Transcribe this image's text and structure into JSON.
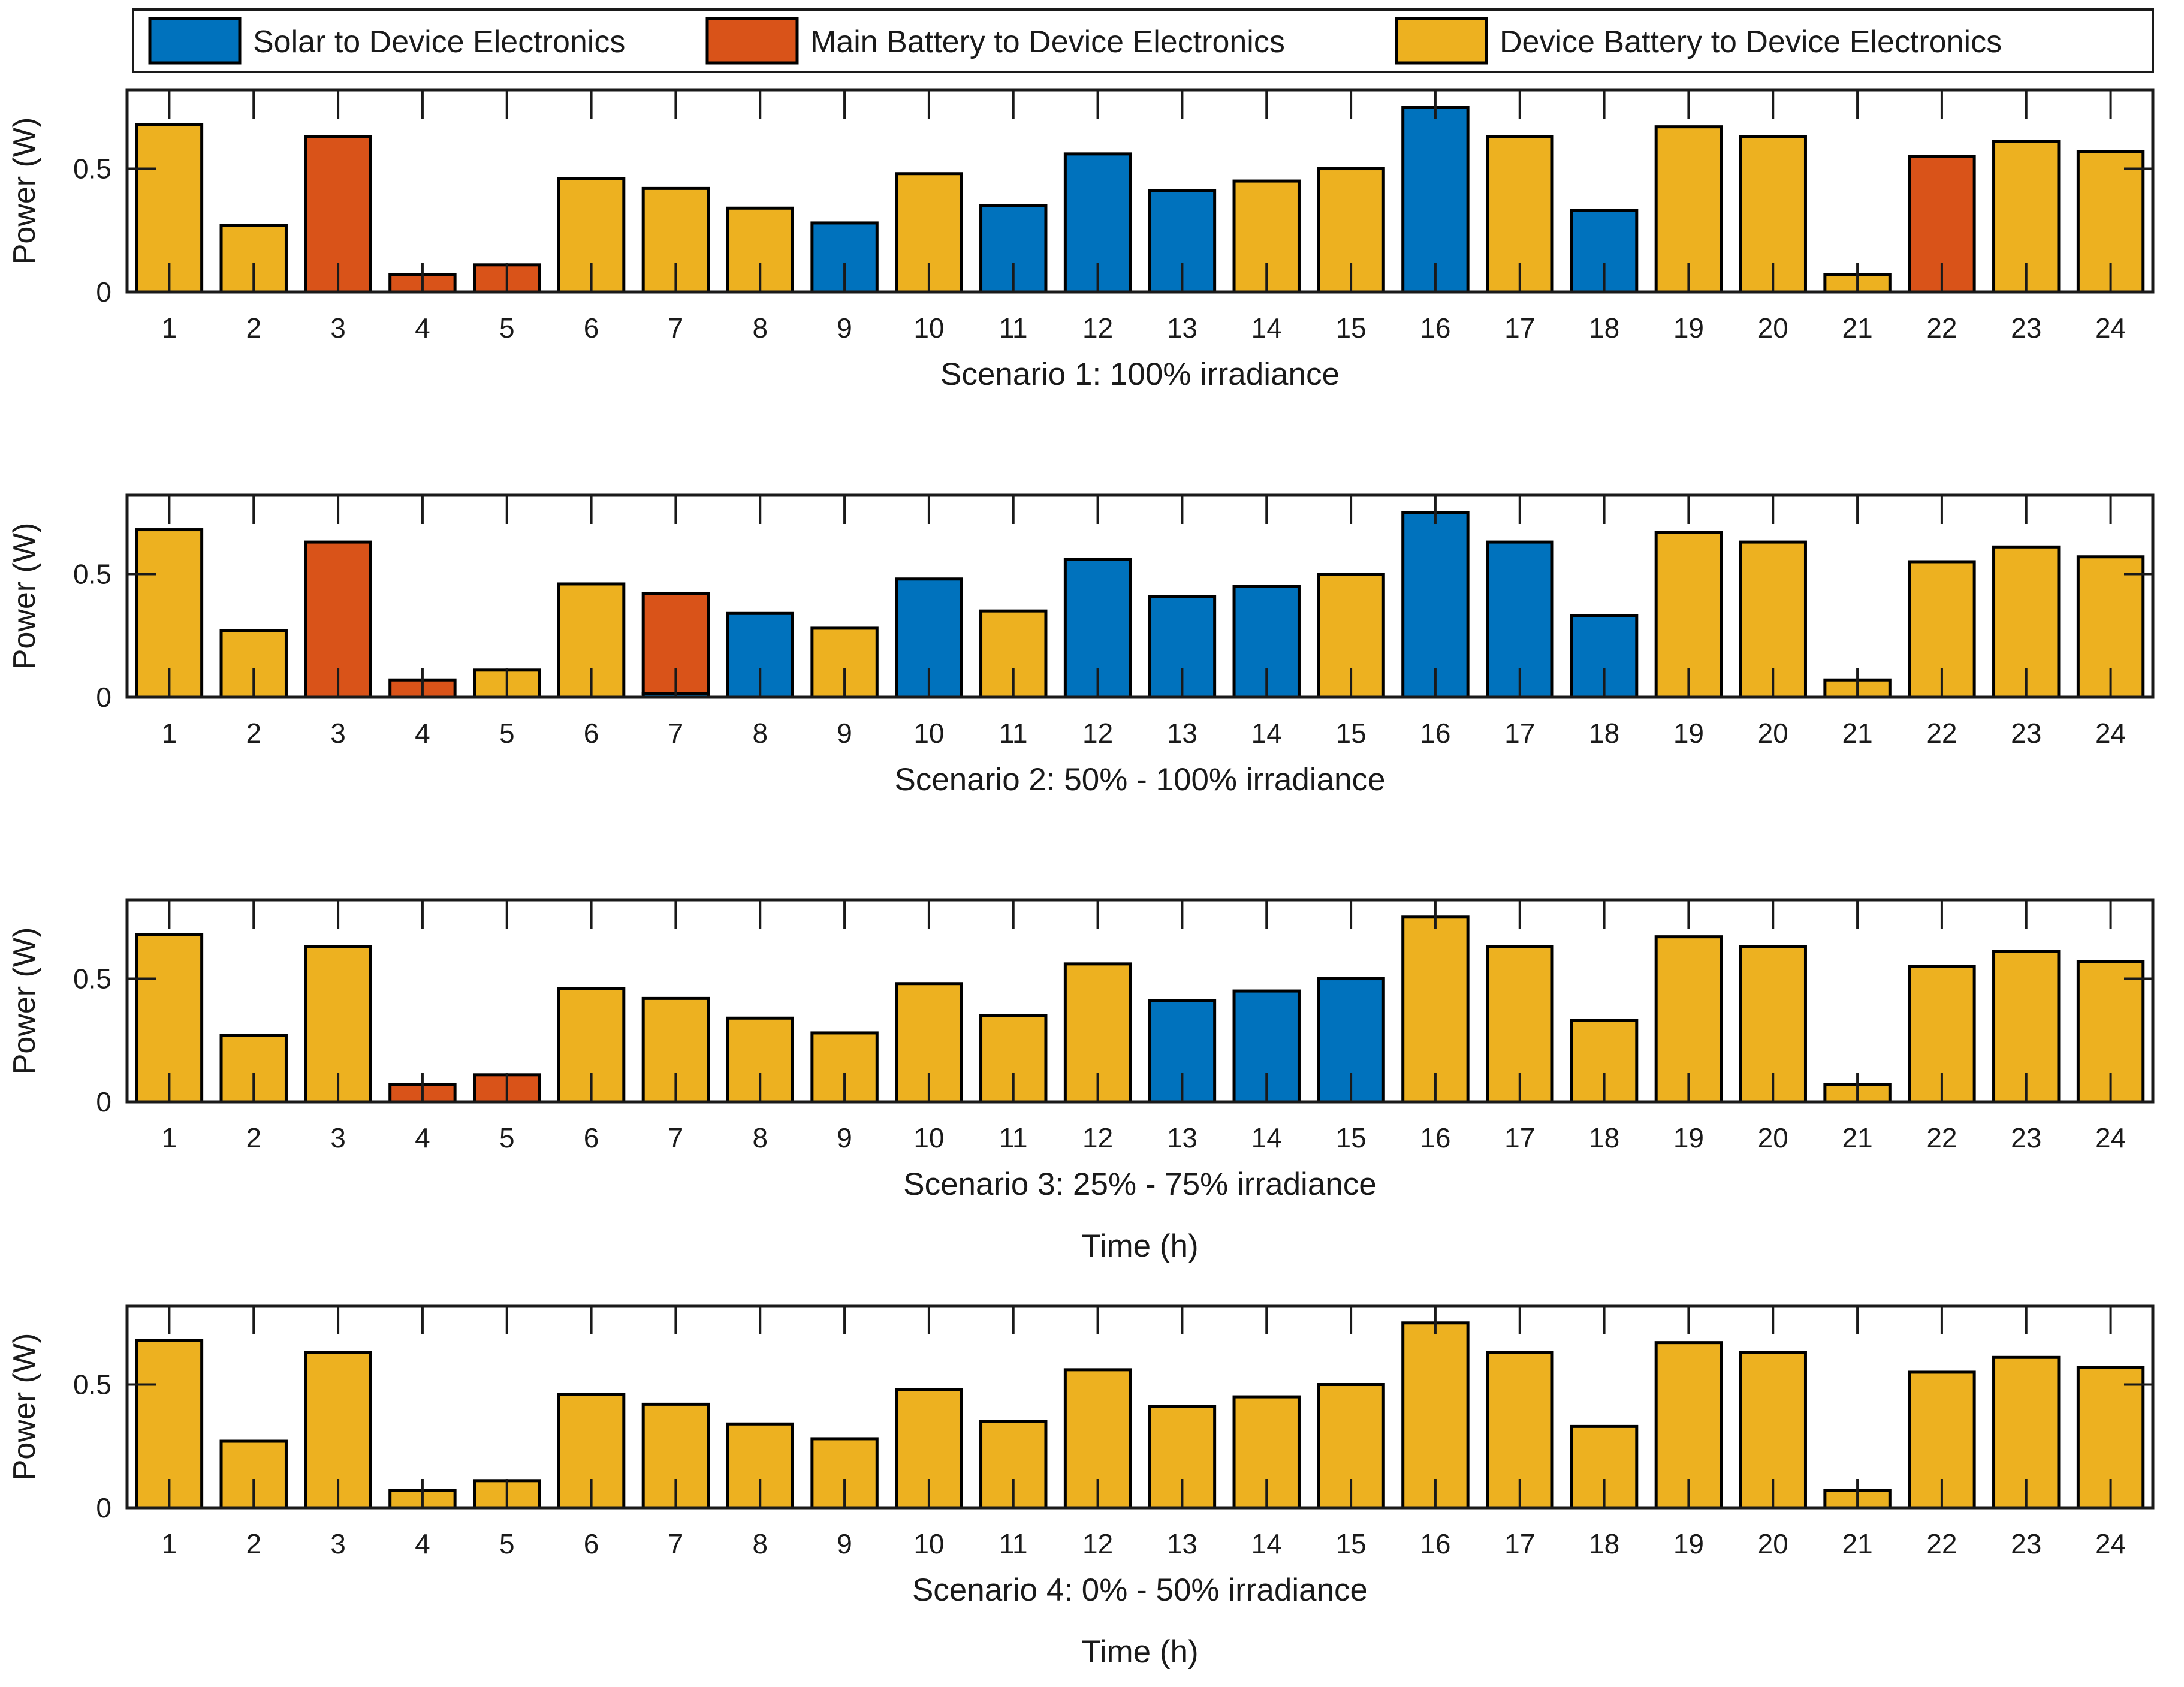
{
  "figure": {
    "background": "#ffffff",
    "axes_color": "#1a1a1a"
  },
  "chart_data": {
    "type": "bar",
    "categories": [
      1,
      2,
      3,
      4,
      5,
      6,
      7,
      8,
      9,
      10,
      11,
      12,
      13,
      14,
      15,
      16,
      17,
      18,
      19,
      20,
      21,
      22,
      23,
      24
    ],
    "xlabel": "Time (h)",
    "ylabel": "Power (W)",
    "ylim": [
      0,
      0.82
    ],
    "yticks": [
      0,
      0.5
    ],
    "ytick_labels": [
      "0",
      "0.5"
    ],
    "grid": false,
    "legend_position": "top",
    "legend": [
      {
        "key": "solar",
        "label": "Solar to Device Electronics",
        "color": "#0072BD"
      },
      {
        "key": "main",
        "label": "Main Battery to Device Electronics",
        "color": "#D95319"
      },
      {
        "key": "device",
        "label": "Device Battery to Device Electronics",
        "color": "#EDB120"
      }
    ],
    "subplots": [
      {
        "title": "Scenario 1: 100% irradiance",
        "show_xlabel": false,
        "bars": [
          [
            {
              "source": "device",
              "value": 0.68
            }
          ],
          [
            {
              "source": "device",
              "value": 0.27
            }
          ],
          [
            {
              "source": "main",
              "value": 0.63
            }
          ],
          [
            {
              "source": "main",
              "value": 0.07
            }
          ],
          [
            {
              "source": "main",
              "value": 0.11
            }
          ],
          [
            {
              "source": "device",
              "value": 0.46
            }
          ],
          [
            {
              "source": "device",
              "value": 0.42
            }
          ],
          [
            {
              "source": "device",
              "value": 0.34
            }
          ],
          [
            {
              "source": "solar",
              "value": 0.28
            }
          ],
          [
            {
              "source": "device",
              "value": 0.48
            }
          ],
          [
            {
              "source": "solar",
              "value": 0.35
            }
          ],
          [
            {
              "source": "solar",
              "value": 0.56
            }
          ],
          [
            {
              "source": "solar",
              "value": 0.41
            }
          ],
          [
            {
              "source": "device",
              "value": 0.45
            }
          ],
          [
            {
              "source": "device",
              "value": 0.5
            }
          ],
          [
            {
              "source": "solar",
              "value": 0.75
            }
          ],
          [
            {
              "source": "device",
              "value": 0.63
            }
          ],
          [
            {
              "source": "solar",
              "value": 0.33
            }
          ],
          [
            {
              "source": "device",
              "value": 0.67
            }
          ],
          [
            {
              "source": "device",
              "value": 0.63
            }
          ],
          [
            {
              "source": "device",
              "value": 0.07
            }
          ],
          [
            {
              "source": "main",
              "value": 0.55
            }
          ],
          [
            {
              "source": "device",
              "value": 0.61
            }
          ],
          [
            {
              "source": "device",
              "value": 0.57
            }
          ]
        ]
      },
      {
        "title": "Scenario 2: 50% - 100% irradiance",
        "show_xlabel": false,
        "bars": [
          [
            {
              "source": "device",
              "value": 0.68
            }
          ],
          [
            {
              "source": "device",
              "value": 0.27
            }
          ],
          [
            {
              "source": "main",
              "value": 0.63
            }
          ],
          [
            {
              "source": "main",
              "value": 0.07
            }
          ],
          [
            {
              "source": "device",
              "value": 0.11
            }
          ],
          [
            {
              "source": "device",
              "value": 0.46
            }
          ],
          [
            {
              "source": "solar",
              "value": 0.015
            },
            {
              "source": "main",
              "value": 0.405
            }
          ],
          [
            {
              "source": "solar",
              "value": 0.34
            }
          ],
          [
            {
              "source": "device",
              "value": 0.28
            }
          ],
          [
            {
              "source": "solar",
              "value": 0.48
            }
          ],
          [
            {
              "source": "device",
              "value": 0.35
            }
          ],
          [
            {
              "source": "solar",
              "value": 0.56
            }
          ],
          [
            {
              "source": "solar",
              "value": 0.41
            }
          ],
          [
            {
              "source": "solar",
              "value": 0.45
            }
          ],
          [
            {
              "source": "device",
              "value": 0.5
            }
          ],
          [
            {
              "source": "solar",
              "value": 0.75
            }
          ],
          [
            {
              "source": "solar",
              "value": 0.63
            }
          ],
          [
            {
              "source": "solar",
              "value": 0.33
            }
          ],
          [
            {
              "source": "device",
              "value": 0.67
            }
          ],
          [
            {
              "source": "device",
              "value": 0.63
            }
          ],
          [
            {
              "source": "device",
              "value": 0.07
            }
          ],
          [
            {
              "source": "device",
              "value": 0.55
            }
          ],
          [
            {
              "source": "device",
              "value": 0.61
            }
          ],
          [
            {
              "source": "device",
              "value": 0.57
            }
          ]
        ]
      },
      {
        "title": "Scenario 3: 25% - 75% irradiance",
        "show_xlabel": true,
        "bars": [
          [
            {
              "source": "device",
              "value": 0.68
            }
          ],
          [
            {
              "source": "device",
              "value": 0.27
            }
          ],
          [
            {
              "source": "device",
              "value": 0.63
            }
          ],
          [
            {
              "source": "main",
              "value": 0.07
            }
          ],
          [
            {
              "source": "main",
              "value": 0.11
            }
          ],
          [
            {
              "source": "device",
              "value": 0.46
            }
          ],
          [
            {
              "source": "device",
              "value": 0.42
            }
          ],
          [
            {
              "source": "device",
              "value": 0.34
            }
          ],
          [
            {
              "source": "device",
              "value": 0.28
            }
          ],
          [
            {
              "source": "device",
              "value": 0.48
            }
          ],
          [
            {
              "source": "device",
              "value": 0.35
            }
          ],
          [
            {
              "source": "device",
              "value": 0.56
            }
          ],
          [
            {
              "source": "solar",
              "value": 0.41
            }
          ],
          [
            {
              "source": "solar",
              "value": 0.45
            }
          ],
          [
            {
              "source": "solar",
              "value": 0.5
            }
          ],
          [
            {
              "source": "device",
              "value": 0.75
            }
          ],
          [
            {
              "source": "device",
              "value": 0.63
            }
          ],
          [
            {
              "source": "device",
              "value": 0.33
            }
          ],
          [
            {
              "source": "device",
              "value": 0.67
            }
          ],
          [
            {
              "source": "device",
              "value": 0.63
            }
          ],
          [
            {
              "source": "device",
              "value": 0.07
            }
          ],
          [
            {
              "source": "device",
              "value": 0.55
            }
          ],
          [
            {
              "source": "device",
              "value": 0.61
            }
          ],
          [
            {
              "source": "device",
              "value": 0.57
            }
          ]
        ]
      },
      {
        "title": "Scenario 4: 0% - 50% irradiance",
        "show_xlabel": true,
        "bars": [
          [
            {
              "source": "device",
              "value": 0.68
            }
          ],
          [
            {
              "source": "device",
              "value": 0.27
            }
          ],
          [
            {
              "source": "device",
              "value": 0.63
            }
          ],
          [
            {
              "source": "device",
              "value": 0.07
            }
          ],
          [
            {
              "source": "device",
              "value": 0.11
            }
          ],
          [
            {
              "source": "device",
              "value": 0.46
            }
          ],
          [
            {
              "source": "device",
              "value": 0.42
            }
          ],
          [
            {
              "source": "device",
              "value": 0.34
            }
          ],
          [
            {
              "source": "device",
              "value": 0.28
            }
          ],
          [
            {
              "source": "device",
              "value": 0.48
            }
          ],
          [
            {
              "source": "device",
              "value": 0.35
            }
          ],
          [
            {
              "source": "device",
              "value": 0.56
            }
          ],
          [
            {
              "source": "device",
              "value": 0.41
            }
          ],
          [
            {
              "source": "device",
              "value": 0.45
            }
          ],
          [
            {
              "source": "device",
              "value": 0.5
            }
          ],
          [
            {
              "source": "device",
              "value": 0.75
            }
          ],
          [
            {
              "source": "device",
              "value": 0.63
            }
          ],
          [
            {
              "source": "device",
              "value": 0.33
            }
          ],
          [
            {
              "source": "device",
              "value": 0.67
            }
          ],
          [
            {
              "source": "device",
              "value": 0.63
            }
          ],
          [
            {
              "source": "device",
              "value": 0.07
            }
          ],
          [
            {
              "source": "device",
              "value": 0.55
            }
          ],
          [
            {
              "source": "device",
              "value": 0.61
            }
          ],
          [
            {
              "source": "device",
              "value": 0.57
            }
          ]
        ]
      }
    ]
  }
}
